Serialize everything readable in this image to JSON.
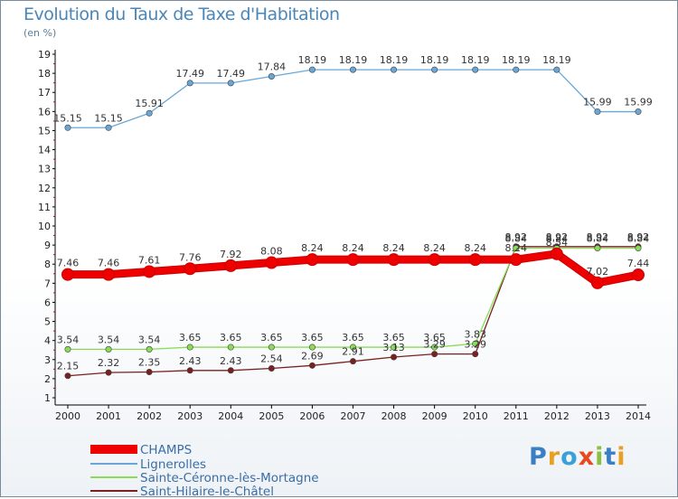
{
  "title": "Evolution du Taux de Taxe d'Habitation",
  "unit": "(en %)",
  "logo": {
    "text": "Proxiti",
    "colors": [
      "#3a7fc4",
      "#e8a020",
      "#3aa0d8",
      "#e84a20",
      "#8ac040",
      "#3a7fc4",
      "#e8a020"
    ]
  },
  "chart_data": {
    "type": "line",
    "title": "Evolution du Taux de Taxe d'Habitation",
    "ylabel": "(en %)",
    "xlabel": "",
    "ylim": [
      1,
      19
    ],
    "yticks": [
      1,
      2,
      3,
      4,
      5,
      6,
      7,
      8,
      9,
      10,
      11,
      12,
      13,
      14,
      15,
      16,
      17,
      18,
      19
    ],
    "categories": [
      "2000",
      "2001",
      "2002",
      "2003",
      "2004",
      "2005",
      "2006",
      "2007",
      "2008",
      "2009",
      "2010",
      "2011",
      "2012",
      "2013",
      "2014"
    ],
    "series": [
      {
        "name": "CHAMPS",
        "color": "#ee0000",
        "values": [
          7.46,
          7.46,
          7.61,
          7.76,
          7.92,
          8.08,
          8.24,
          8.24,
          8.24,
          8.24,
          8.24,
          8.24,
          8.54,
          7.02,
          7.44
        ],
        "labels": [
          "7.46",
          "7.46",
          "7.61",
          "7.76",
          "7.92",
          "8.08",
          "8.24",
          "8.24",
          "8.24",
          "8.24",
          "8.24",
          "8.24",
          "8.54",
          "7.02",
          "7.44"
        ]
      },
      {
        "name": "Lignerolles",
        "color": "#6aa6d6",
        "values": [
          15.15,
          15.15,
          15.91,
          17.49,
          17.49,
          17.84,
          18.19,
          18.19,
          18.19,
          18.19,
          18.19,
          18.19,
          18.19,
          15.99,
          15.99
        ],
        "labels": [
          "15.15",
          "15.15",
          "15.91",
          "17.49",
          "17.49",
          "17.84",
          "18.19",
          "18.19",
          "18.19",
          "18.19",
          "18.19",
          "18.19",
          "18.19",
          "15.99",
          "15.99"
        ]
      },
      {
        "name": "Sainte-Céronne-lès-Mortagne",
        "color": "#88dd55",
        "values": [
          3.54,
          3.54,
          3.54,
          3.65,
          3.65,
          3.65,
          3.65,
          3.65,
          3.65,
          3.65,
          3.83,
          8.84,
          8.84,
          8.84,
          8.84
        ],
        "labels": [
          "3.54",
          "3.54",
          "3.54",
          "3.65",
          "3.65",
          "3.65",
          "3.65",
          "3.65",
          "3.65",
          "3.65",
          "3.83",
          "8.84",
          "8.84",
          "8.84",
          "8.84"
        ]
      },
      {
        "name": "Saint-Hilaire-le-Châtel",
        "color": "#7a2020",
        "values": [
          2.15,
          2.32,
          2.35,
          2.43,
          2.43,
          2.54,
          2.69,
          2.91,
          3.13,
          3.29,
          3.29,
          8.92,
          8.92,
          8.92,
          8.92
        ],
        "labels": [
          "2.15",
          "2.32",
          "2.35",
          "2.43",
          "2.43",
          "2.54",
          "2.69",
          "2.91",
          "3.13",
          "3.29",
          "3.29",
          "8.92",
          "8.92",
          "8.92",
          "8.92"
        ]
      }
    ],
    "legend": "bottom-left",
    "grid": false
  }
}
